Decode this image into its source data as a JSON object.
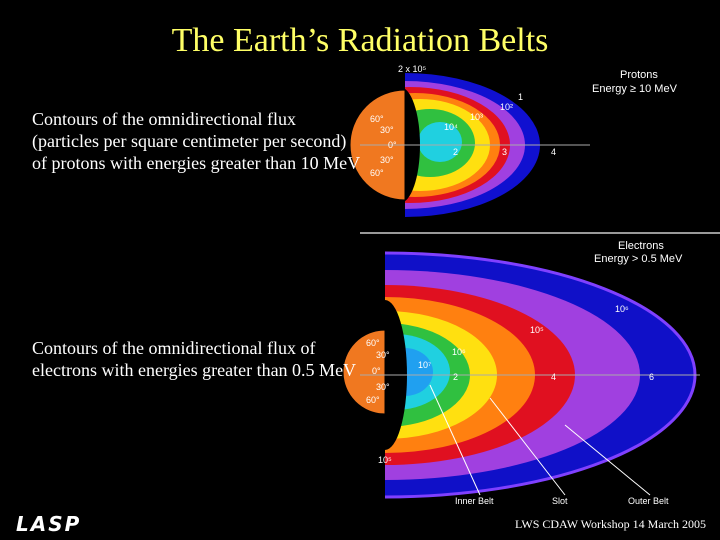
{
  "title": "The Earth’s Radiation Belts",
  "captions": [
    "Contours of the omnidirectional flux (particles per square centimeter per second) of protons with energies greater than 10 MeV",
    "Contours of the omnidirectional flux of electrons with energies greater than 0.5 MeV"
  ],
  "figures": [
    {
      "title": "Protons",
      "subtitle": "Energy ≥ 10 MeV",
      "labels": [
        "2 x 10⁵",
        "1",
        "10²",
        "10⁴",
        "10³",
        "60°",
        "30°",
        "0°",
        "30°",
        "60°",
        "2",
        "3",
        "4"
      ]
    },
    {
      "title": "Electrons",
      "subtitle": "Energy > 0.5 MeV",
      "labels": [
        "10⁶",
        "10⁵",
        "10⁶",
        "10⁷",
        "60°",
        "30°",
        "0°",
        "30°",
        "60°",
        "10⁵",
        "2",
        "4",
        "6",
        "Inner Belt",
        "Slot",
        "Outer Belt"
      ]
    }
  ],
  "logo": "LASP",
  "footer": "LWS CDAW Workshop 14 March 2005"
}
